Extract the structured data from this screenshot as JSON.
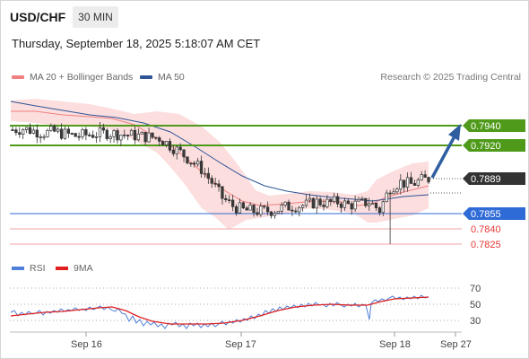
{
  "header": {
    "symbol": "USD/CHF",
    "timeframe": "30 MIN",
    "datetime": "Thursday, September 18, 2025 5:18:07 AM CET"
  },
  "legend": {
    "ma20_label": "MA 20 + Bollinger Bands",
    "ma50_label": "MA 50",
    "ma20_color": "#f08080",
    "ma50_color": "#2f5597"
  },
  "copyright": "Research © 2025 Trading Central",
  "levels": {
    "resistance_2": "0.7940",
    "resistance_1": "0.7920",
    "current": "0.7889",
    "pivot": "0.7855",
    "support_1": "0.7840",
    "support_2": "0.7825"
  },
  "rsi_legend": {
    "rsi_label": "RSI",
    "ma9_label": "9MA",
    "rsi_color": "#4f7fd8",
    "ma9_color": "#e02020"
  },
  "rsi_axis": [
    "70",
    "50",
    "30"
  ],
  "x_axis": [
    "Sep 16",
    "Sep 17",
    "Sep 18",
    "Sep 27"
  ],
  "colors": {
    "resistance": "#4f9a1a",
    "pivot": "#2f6bd6",
    "support": "#e57373",
    "current": "#3a3a3a",
    "arrow": "#2f5fa0",
    "band_fill": "#fbd3d3"
  },
  "chart_data": {
    "type": "candlestick",
    "price_ticks": [
      0.7825,
      0.784,
      0.7855,
      0.7889,
      0.792,
      0.794
    ],
    "close_series": [
      0.7936,
      0.7937,
      0.7935,
      0.7933,
      0.7934,
      0.7932,
      0.793,
      0.7931,
      0.7932,
      0.7933,
      0.7932,
      0.7931,
      0.793,
      0.7929,
      0.7928,
      0.7921,
      0.7914,
      0.7906,
      0.7898,
      0.7885,
      0.787,
      0.7862,
      0.7858,
      0.7857,
      0.7857,
      0.7858,
      0.7861,
      0.7862,
      0.7863,
      0.7866,
      0.7865,
      0.7866,
      0.7863,
      0.7864,
      0.7866,
      0.7858,
      0.788,
      0.7885,
      0.7883,
      0.7887,
      0.7889
    ],
    "rsi_range": [
      30,
      70
    ]
  }
}
